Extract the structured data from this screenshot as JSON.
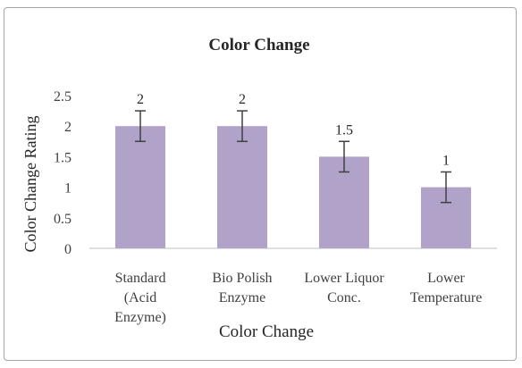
{
  "chart_data": {
    "type": "bar",
    "title": "Color Change",
    "xlabel": "Color Change",
    "ylabel": "Color Change Rating",
    "ylim": [
      0,
      2.5
    ],
    "yticks": [
      "0",
      "0.5",
      "1",
      "1.5",
      "2",
      "2.5"
    ],
    "categories": [
      [
        "Standard",
        "(Acid",
        "Enzyme)"
      ],
      [
        "Bio Polish",
        "Enzyme"
      ],
      [
        "Lower Liquor",
        "Conc."
      ],
      [
        "Lower",
        "Temperature"
      ]
    ],
    "values": [
      2,
      2,
      1.5,
      1
    ],
    "data_labels": [
      "2",
      "2",
      "1.5",
      "1"
    ],
    "error": [
      0.25,
      0.25,
      0.25,
      0.25
    ],
    "bar_color": "#b0a2c8",
    "error_color": "#404040",
    "grid": false,
    "legend": "none"
  }
}
